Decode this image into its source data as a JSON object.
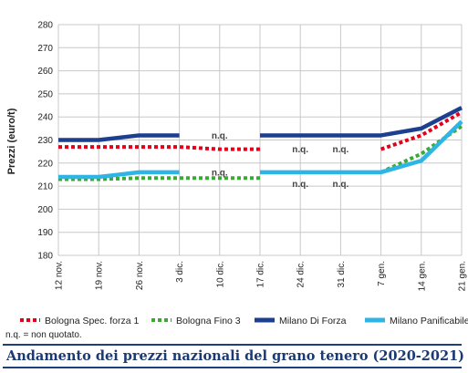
{
  "caption": "Andamento dei prezzi nazionali del grano tenero (2020-2021)",
  "footnote": "n.q. = non quotato.",
  "chart_data": {
    "type": "line",
    "ylabel": "Prezzi (euro/t)",
    "xlabel": "",
    "ylim": [
      180,
      280
    ],
    "yticks": [
      180,
      190,
      200,
      210,
      220,
      230,
      240,
      250,
      260,
      270,
      280
    ],
    "grid": true,
    "legend_position": "bottom",
    "categories": [
      "12 nov.",
      "19 nov.",
      "26 nov.",
      "3 dic.",
      "10 dic.",
      "17 dic.",
      "24 dic.",
      "31 dic.",
      "7 gen.",
      "14 gen.",
      "21 gen."
    ],
    "series": [
      {
        "name": "Bologna Spec. forza 1",
        "color": "#e2001a",
        "style": "dotted",
        "values": [
          227,
          227,
          227,
          227,
          226,
          226,
          null,
          null,
          226,
          232,
          242
        ]
      },
      {
        "name": "Bologna Fino 3",
        "color": "#3aaa35",
        "style": "dotted",
        "values": [
          213,
          213,
          213.5,
          213.5,
          213.5,
          213.5,
          null,
          null,
          216,
          224,
          236
        ]
      },
      {
        "name": "Milano Di Forza",
        "color": "#1d3f8f",
        "style": "solid",
        "values": [
          230,
          230,
          232,
          232,
          null,
          232,
          232,
          232,
          232,
          235,
          244
        ]
      },
      {
        "name": "Milano Panificabile",
        "color": "#2fb4e6",
        "style": "solid",
        "values": [
          214,
          214,
          216,
          216,
          null,
          216,
          216,
          216,
          216,
          221,
          238
        ]
      }
    ],
    "annotations": [
      {
        "text": "n.q.",
        "x": "10 dic.",
        "y": 232
      },
      {
        "text": "n.q.",
        "x": "24 dic.",
        "y": 226
      },
      {
        "text": "n.q.",
        "x": "31 dic.",
        "y": 226
      },
      {
        "text": "n.q.",
        "x": "10 dic.",
        "y": 216
      },
      {
        "text": "n.q.",
        "x": "24 dic.",
        "y": 211
      },
      {
        "text": "n.q.",
        "x": "31 dic.",
        "y": 211
      }
    ]
  }
}
